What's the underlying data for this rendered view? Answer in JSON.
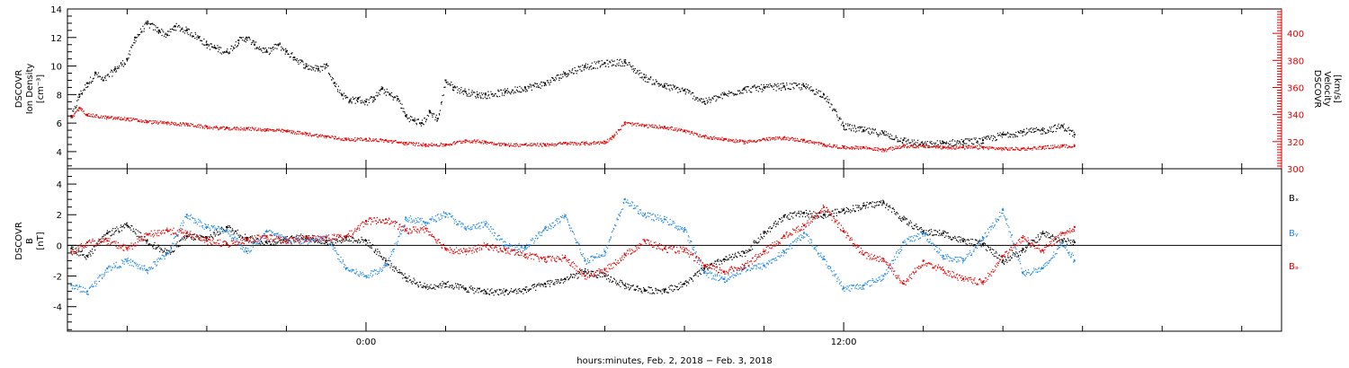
{
  "chart_data": [
    {
      "type": "scatter",
      "ylabel": [
        "DSCOVR",
        "Ion Density",
        "[cm⁻³]"
      ],
      "ylabel_right": [
        "DSCOVR",
        "Velocity",
        "[km/s]"
      ],
      "ylim": [
        2.8,
        14
      ],
      "ylim_right": [
        300,
        418
      ],
      "yticks": [
        4,
        6,
        8,
        10,
        12,
        14
      ],
      "yticks_right": [
        300,
        320,
        340,
        360,
        380,
        400
      ],
      "right_axis_color": "#e00000",
      "series": [
        {
          "axis": "left",
          "color": "#000000",
          "x": [
            -7.4,
            -7.2,
            -7.0,
            -6.8,
            -6.6,
            -6.3,
            -6.0,
            -5.8,
            -5.5,
            -5.2,
            -5.0,
            -4.8,
            -4.5,
            -4.2,
            -4.0,
            -3.8,
            -3.5,
            -3.2,
            -3.0,
            -2.8,
            -2.5,
            -2.2,
            -2.0,
            -1.8,
            -1.5,
            -1.2,
            -1.0,
            -0.8,
            -0.6,
            -0.4,
            -0.2,
            0.0,
            0.2,
            0.4,
            0.6,
            0.8,
            1.0,
            1.2,
            1.4,
            1.6,
            1.8,
            2.0,
            2.2,
            2.5,
            2.8,
            3.0,
            3.5,
            4.0,
            4.5,
            5.0,
            5.5,
            6.0,
            6.5,
            7.0,
            7.5,
            8.0,
            8.5,
            9.0,
            9.5,
            10.0,
            10.5,
            11.0,
            11.5,
            12.0,
            12.5,
            13.0,
            13.5,
            14.0,
            14.5,
            15.0,
            15.5,
            16.0,
            16.5,
            17.0,
            17.5,
            17.8
          ],
          "y": [
            6.5,
            8.0,
            8.8,
            9.5,
            9.0,
            9.8,
            10.5,
            12.0,
            13.0,
            12.5,
            12.2,
            12.8,
            12.5,
            12.0,
            11.5,
            11.3,
            11.0,
            11.8,
            12.0,
            11.5,
            11.0,
            11.5,
            11.0,
            10.6,
            10.0,
            9.8,
            10.1,
            8.8,
            8.0,
            7.6,
            7.7,
            7.5,
            7.8,
            8.4,
            8.0,
            7.7,
            6.5,
            6.2,
            6.0,
            6.8,
            6.3,
            9.0,
            8.5,
            8.2,
            8.0,
            8.0,
            8.2,
            8.5,
            8.8,
            9.5,
            10.0,
            10.2,
            10.3,
            9.2,
            8.6,
            8.3,
            7.5,
            8.0,
            8.4,
            8.5,
            8.6,
            8.6,
            8.0,
            5.8,
            5.5,
            5.3,
            4.8,
            4.5,
            4.6,
            4.7,
            4.8,
            5.2,
            5.4,
            5.5,
            5.8,
            5.2
          ]
        },
        {
          "axis": "right",
          "color": "#e00000",
          "x": [
            -7.4,
            -7.2,
            -7.0,
            -6.5,
            -6.0,
            -5.5,
            -5.0,
            -4.5,
            -4.0,
            -3.5,
            -3.0,
            -2.5,
            -2.0,
            -1.5,
            -1.0,
            -0.5,
            0.0,
            0.5,
            1.0,
            1.5,
            2.0,
            2.5,
            3.0,
            3.5,
            4.0,
            4.5,
            5.0,
            5.5,
            6.0,
            6.2,
            6.5,
            7.0,
            7.5,
            8.0,
            8.5,
            9.0,
            9.5,
            10.0,
            10.5,
            11.0,
            11.5,
            12.0,
            12.5,
            13.0,
            13.5,
            14.0,
            14.5,
            15.0,
            15.5,
            16.0,
            16.5,
            17.0,
            17.5,
            17.8
          ],
          "y": [
            338,
            345,
            340,
            338,
            337,
            335,
            334,
            333,
            331,
            330,
            330,
            329,
            328,
            326,
            324,
            322,
            322,
            321,
            319,
            318,
            318,
            321,
            320,
            318,
            318,
            318,
            319,
            319,
            320,
            324,
            334,
            332,
            331,
            328,
            324,
            322,
            320,
            322,
            323,
            321,
            318,
            316,
            316,
            314,
            317,
            317,
            316,
            316,
            316,
            315,
            315,
            316,
            317,
            317
          ]
        }
      ]
    },
    {
      "type": "scatter",
      "ylabel": [
        "DSCOVR",
        "B",
        "[nT]"
      ],
      "ylim": [
        -5.6,
        5.0
      ],
      "yticks": [
        -4,
        -2,
        0,
        2,
        4
      ],
      "zero_line": true,
      "series": [
        {
          "name": "Bₓ",
          "color": "#000000",
          "x": [
            -7.4,
            -7.0,
            -6.5,
            -6.0,
            -5.5,
            -5.0,
            -4.5,
            -4.0,
            -3.5,
            -3.0,
            -2.5,
            -2.0,
            -1.5,
            -1.0,
            -0.5,
            0.0,
            0.5,
            1.0,
            1.5,
            2.0,
            2.5,
            3.0,
            3.5,
            4.0,
            4.5,
            5.0,
            5.5,
            6.0,
            6.5,
            7.0,
            7.5,
            8.0,
            8.5,
            9.0,
            9.5,
            10.0,
            10.5,
            11.0,
            11.5,
            12.0,
            12.5,
            13.0,
            13.5,
            14.0,
            14.5,
            15.0,
            15.5,
            16.0,
            16.5,
            17.0,
            17.5,
            17.8
          ],
          "y": [
            -0.2,
            -0.7,
            0.8,
            1.3,
            0.3,
            -0.5,
            0.6,
            0.5,
            1.2,
            0.5,
            0.2,
            0.4,
            0.6,
            0.2,
            0.5,
            0.3,
            -1.0,
            -2.1,
            -2.7,
            -2.5,
            -2.8,
            -3.0,
            -3.0,
            -2.9,
            -2.5,
            -2.2,
            -1.7,
            -2.0,
            -2.6,
            -2.9,
            -2.9,
            -2.5,
            -1.5,
            -0.9,
            -0.5,
            0.8,
            1.9,
            2.1,
            2.0,
            2.3,
            2.6,
            2.8,
            1.7,
            0.9,
            0.8,
            0.3,
            0.1,
            -1.0,
            -0.3,
            0.8,
            0.3,
            0.2
          ]
        },
        {
          "name": "Bᵧ",
          "color": "#1e88e5",
          "x": [
            -7.4,
            -7.0,
            -6.5,
            -6.0,
            -5.5,
            -5.0,
            -4.5,
            -4.0,
            -3.5,
            -3.0,
            -2.5,
            -2.0,
            -1.5,
            -1.0,
            -0.5,
            0.0,
            0.5,
            1.0,
            1.5,
            2.0,
            2.5,
            3.0,
            3.5,
            4.0,
            4.5,
            5.0,
            5.5,
            6.0,
            6.5,
            7.0,
            7.5,
            8.0,
            8.5,
            9.0,
            9.5,
            10.0,
            10.5,
            11.0,
            11.5,
            12.0,
            12.5,
            13.0,
            13.5,
            14.0,
            14.5,
            15.0,
            15.5,
            16.0,
            16.5,
            17.0,
            17.5,
            17.8
          ],
          "y": [
            -2.6,
            -3.0,
            -1.5,
            -1.0,
            -1.6,
            -0.5,
            2.0,
            1.2,
            1.0,
            -0.4,
            0.9,
            0.4,
            0.3,
            0.5,
            -1.5,
            -2.0,
            -1.3,
            1.8,
            1.5,
            2.1,
            1.1,
            1.4,
            0.0,
            -0.1,
            1.1,
            1.9,
            -1.0,
            -0.4,
            3.0,
            2.0,
            1.7,
            1.0,
            -1.8,
            -2.2,
            -1.5,
            -1.3,
            -0.4,
            0.8,
            -0.9,
            -2.8,
            -2.6,
            -2.0,
            0.2,
            0.8,
            -0.7,
            -1.0,
            0.5,
            2.3,
            -1.8,
            -1.5,
            0.2,
            -1.0
          ]
        },
        {
          "name": "Bₔ",
          "color": "#e00000",
          "x": [
            -7.4,
            -7.0,
            -6.5,
            -6.0,
            -5.5,
            -5.0,
            -4.5,
            -4.0,
            -3.5,
            -3.0,
            -2.5,
            -2.0,
            -1.5,
            -1.0,
            -0.5,
            0.0,
            0.5,
            1.0,
            1.5,
            2.0,
            2.5,
            3.0,
            3.5,
            4.0,
            4.5,
            5.0,
            5.5,
            6.0,
            6.5,
            7.0,
            7.5,
            8.0,
            8.5,
            9.0,
            9.5,
            10.0,
            10.5,
            11.0,
            11.5,
            12.0,
            12.5,
            13.0,
            13.5,
            14.0,
            14.5,
            15.0,
            15.5,
            16.0,
            16.5,
            17.0,
            17.5,
            17.8
          ],
          "y": [
            -0.4,
            0.2,
            0.3,
            -0.2,
            0.7,
            1.0,
            0.8,
            0.3,
            0.1,
            0.4,
            0.6,
            0.3,
            0.5,
            0.5,
            0.6,
            1.6,
            1.7,
            1.0,
            1.1,
            -0.2,
            -0.4,
            0.0,
            -0.3,
            -0.6,
            -0.9,
            -0.8,
            -2.0,
            -1.6,
            -0.6,
            0.3,
            -0.2,
            -0.3,
            -1.3,
            -1.7,
            -1.3,
            -0.4,
            0.6,
            1.3,
            2.5,
            0.9,
            -0.6,
            -0.9,
            -2.5,
            -1.0,
            -1.6,
            -2.2,
            -2.4,
            -0.7,
            0.5,
            -0.3,
            0.8,
            1.2
          ]
        }
      ]
    }
  ],
  "time_axis": {
    "xlim": [
      -7.5,
      23.0
    ],
    "ticks": [
      {
        "h": 0,
        "label": "0:00"
      },
      {
        "h": 12,
        "label": "12:00"
      }
    ],
    "minor_step_hours": 2,
    "xlabel": "hours:minutes, Feb.  2, 2018 − Feb.  3, 2018"
  }
}
